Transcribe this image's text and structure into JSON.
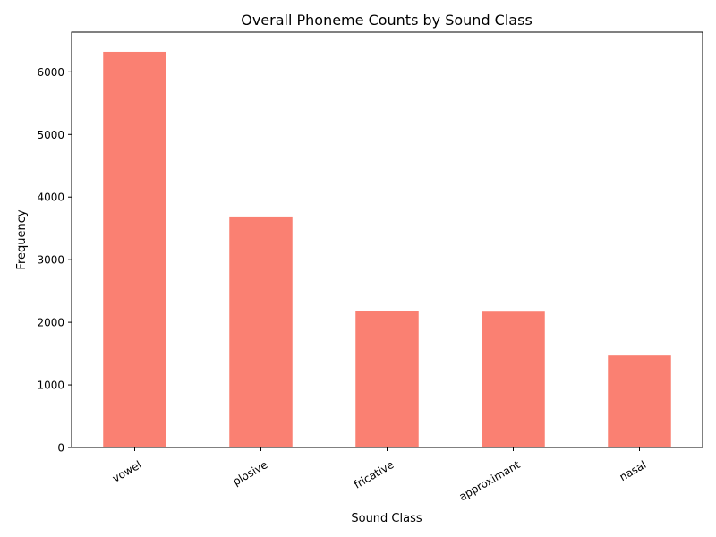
{
  "chart_data": {
    "type": "bar",
    "title": "Overall Phoneme Counts by Sound Class",
    "xlabel": "Sound Class",
    "ylabel": "Frequency",
    "categories": [
      "vowel",
      "plosive",
      "fricative",
      "approximant",
      "nasal"
    ],
    "values": [
      6320,
      3690,
      2180,
      2170,
      1470
    ],
    "ylim": [
      0,
      6634
    ],
    "yticks": [
      0,
      1000,
      2000,
      3000,
      4000,
      5000,
      6000
    ],
    "x_tick_rotation_deg": 30,
    "bar_color": "#fa8072",
    "grid": false,
    "legend": "none"
  }
}
